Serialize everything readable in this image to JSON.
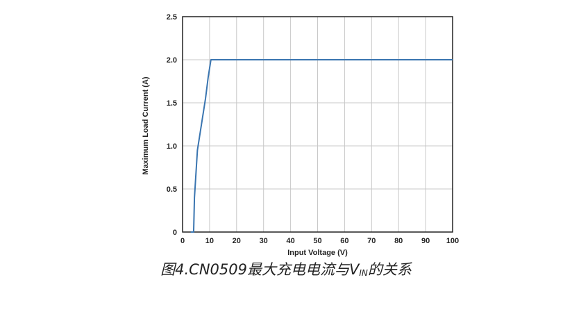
{
  "chart_data": {
    "type": "line",
    "xlabel": "Input Voltage (V)",
    "ylabel": "Maximum Load Current (A)",
    "xlim": [
      0,
      100
    ],
    "ylim": [
      0,
      2.5
    ],
    "xticks": [
      0,
      10,
      20,
      30,
      40,
      50,
      60,
      70,
      80,
      90,
      100
    ],
    "xtick_labels": [
      "0",
      "10",
      "20",
      "30",
      "40",
      "50",
      "60",
      "70",
      "80",
      "90",
      "100"
    ],
    "yticks": [
      0,
      0.5,
      1.0,
      1.5,
      2.0,
      2.5
    ],
    "ytick_labels": [
      "0",
      "0.5",
      "1.0",
      "1.5",
      "2.0",
      "2.5"
    ],
    "grid": true,
    "line_color": "#3a75b0",
    "grid_color": "#c8c8c8",
    "series": [
      {
        "x": [
          3,
          4.1,
          4.4,
          5.5,
          7,
          8.5,
          9.5,
          10.5,
          100
        ],
        "y": [
          0,
          0,
          0.4,
          0.95,
          1.25,
          1.55,
          1.8,
          2.0,
          2.0
        ]
      }
    ]
  },
  "caption": {
    "prefix": "图4.CN0509最大充电电流与V",
    "subscript": "IN",
    "suffix": "的关系"
  }
}
